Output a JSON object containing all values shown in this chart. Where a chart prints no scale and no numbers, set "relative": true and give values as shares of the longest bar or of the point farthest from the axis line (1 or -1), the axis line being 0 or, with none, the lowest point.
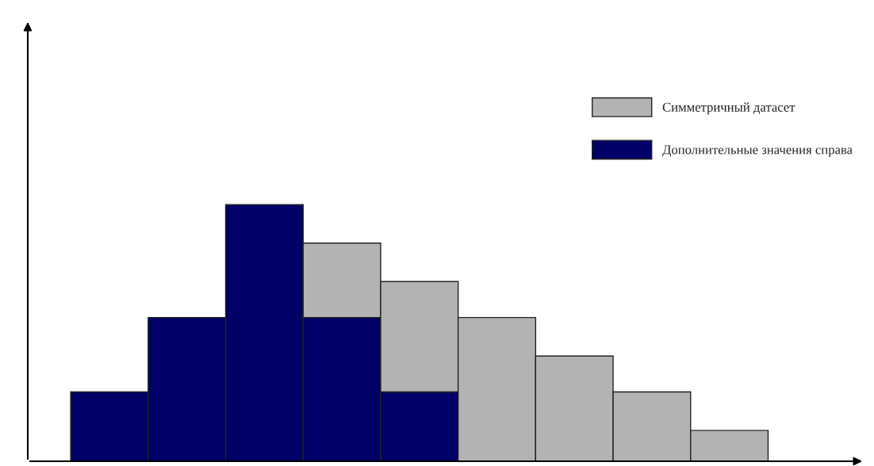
{
  "chart_data": {
    "type": "bar",
    "relative": true,
    "stacked": true,
    "legend": "top right",
    "grid": false,
    "categories": [
      null,
      null,
      null,
      null,
      null,
      null,
      null,
      null,
      null
    ],
    "series": [
      {
        "name": "Дополнительные значения справа",
        "color": "#000066",
        "values": [
          0.27,
          0.56,
          1,
          0.56,
          0.27,
          null,
          null,
          null,
          null
        ]
      },
      {
        "name": "Симметричный датасет",
        "color": "#b3b3b3",
        "values": [
          null,
          null,
          null,
          0.29,
          0.43,
          0.56,
          0.41,
          0.27,
          0.12
        ]
      }
    ]
  }
}
